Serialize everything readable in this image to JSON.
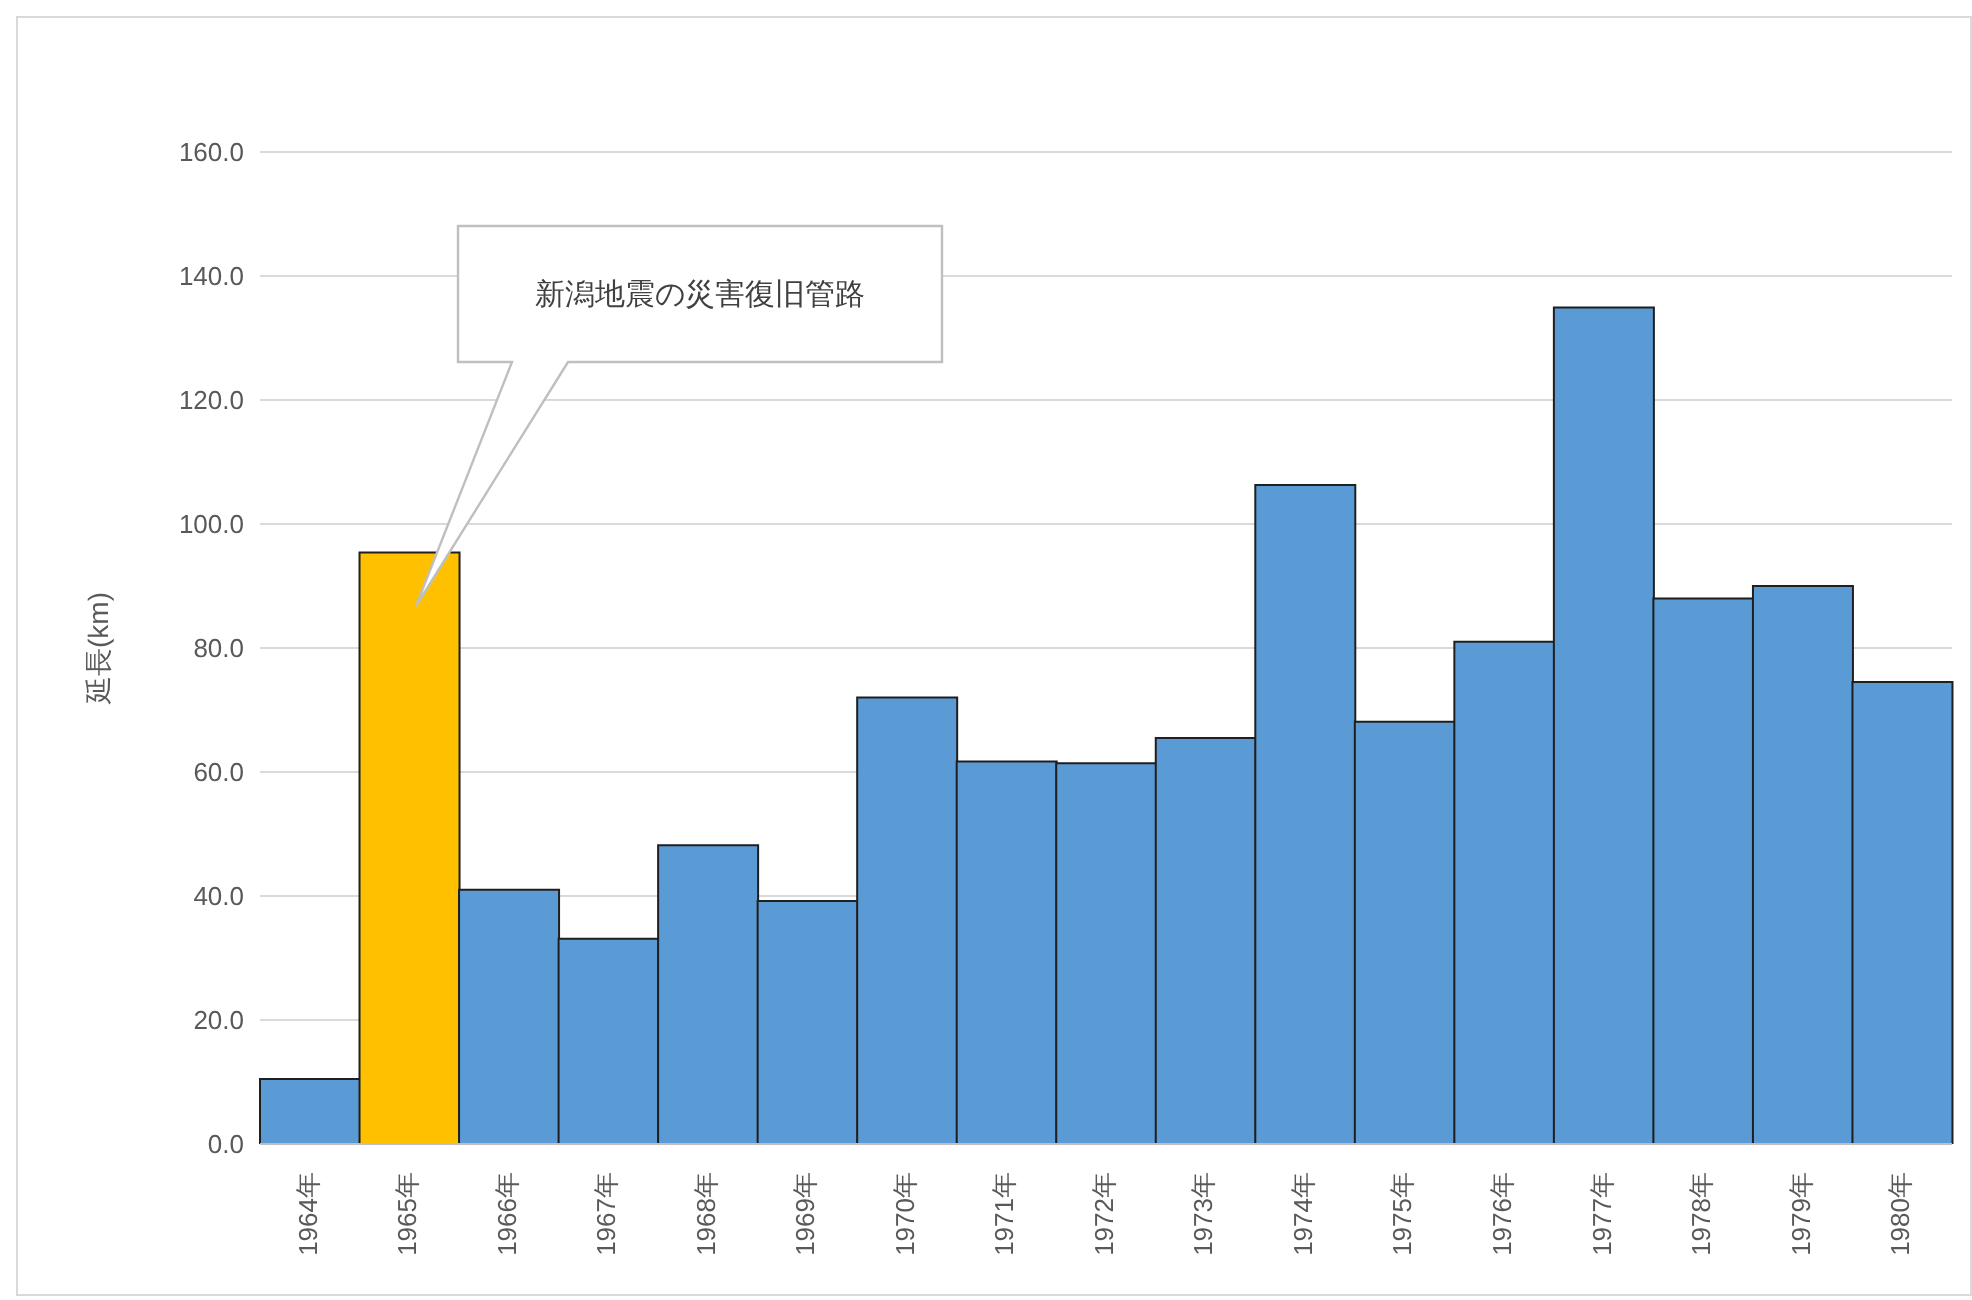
{
  "chart_data": {
    "type": "bar",
    "ylabel": "延長(km)",
    "categories": [
      "1964年",
      "1965年",
      "1966年",
      "1967年",
      "1968年",
      "1969年",
      "1970年",
      "1971年",
      "1972年",
      "1973年",
      "1974年",
      "1975年",
      "1976年",
      "1977年",
      "1978年",
      "1979年",
      "1980年"
    ],
    "values": [
      10.5,
      95.4,
      41,
      33.1,
      48.2,
      39.2,
      72,
      61.7,
      61.4,
      65.5,
      106.3,
      68.1,
      81,
      134.9,
      88,
      90,
      74.5
    ],
    "colors": [
      "#5b9bd5",
      "#ffc000",
      "#5b9bd5",
      "#5b9bd5",
      "#5b9bd5",
      "#5b9bd5",
      "#5b9bd5",
      "#5b9bd5",
      "#5b9bd5",
      "#5b9bd5",
      "#5b9bd5",
      "#5b9bd5",
      "#5b9bd5",
      "#5b9bd5",
      "#5b9bd5",
      "#5b9bd5",
      "#5b9bd5"
    ],
    "ylim": [
      0,
      160
    ],
    "yticks": [
      {
        "value": 0,
        "label": "0.0"
      },
      {
        "value": 20,
        "label": "20.0"
      },
      {
        "value": 40,
        "label": "40.0"
      },
      {
        "value": 60,
        "label": "60.0"
      },
      {
        "value": 80,
        "label": "80.0"
      },
      {
        "value": 100,
        "label": "100.0"
      },
      {
        "value": 120,
        "label": "120.0"
      },
      {
        "value": 140,
        "label": "140.0"
      },
      {
        "value": 160,
        "label": "160.0"
      }
    ],
    "grid": "y",
    "annotations": [
      "新潟地震の災害復旧管路"
    ]
  }
}
